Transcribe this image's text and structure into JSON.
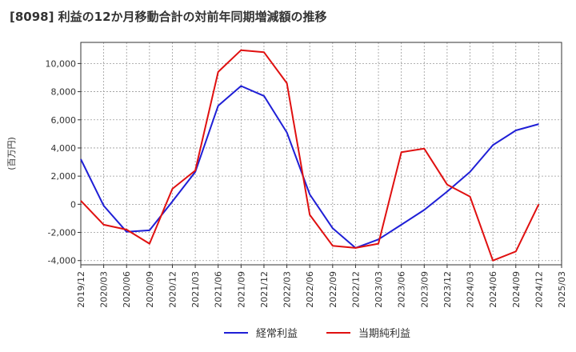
{
  "chart_data": {
    "type": "line",
    "title": "[8098]  利益の12か月移動合計の対前年同期増減額の推移",
    "ylabel": "(百万円)",
    "xlabel": "",
    "ylim": [
      -4300,
      11500
    ],
    "y_ticks": [
      -4000,
      -2000,
      0,
      2000,
      4000,
      6000,
      8000,
      10000
    ],
    "y_tick_labels": [
      "-4,000",
      "-2,000",
      "0",
      "2,000",
      "4,000",
      "6,000",
      "8,000",
      "10,000"
    ],
    "categories": [
      "2019/12",
      "2020/03",
      "2020/06",
      "2020/09",
      "2020/12",
      "2021/03",
      "2021/06",
      "2021/09",
      "2021/12",
      "2022/03",
      "2022/06",
      "2022/09",
      "2022/12",
      "2023/03",
      "2023/06",
      "2023/09",
      "2023/12",
      "2024/03",
      "2024/06",
      "2024/09",
      "2024/12",
      "2025/03"
    ],
    "grid": true,
    "series": [
      {
        "name": "経常利益",
        "color": "#1f1fd6",
        "values": [
          3200,
          -100,
          -1950,
          -1850,
          200,
          2300,
          7000,
          8400,
          7700,
          5100,
          700,
          -1700,
          -3100,
          -2500,
          -1450,
          -400,
          900,
          2300,
          4200,
          5250,
          5700,
          null
        ]
      },
      {
        "name": "当期純利益",
        "color": "#e01010",
        "values": [
          250,
          -1450,
          -1800,
          -2800,
          1100,
          2400,
          9400,
          10950,
          10800,
          8600,
          -750,
          -2950,
          -3100,
          -2800,
          3700,
          3950,
          1400,
          550,
          -4000,
          -3350,
          0,
          null
        ]
      }
    ],
    "legend": {
      "placement": "bottom-center",
      "items": [
        "経常利益",
        "当期純利益"
      ]
    }
  }
}
